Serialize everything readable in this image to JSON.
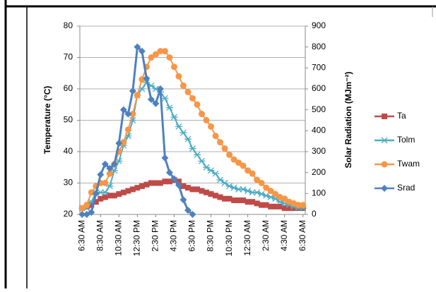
{
  "chart_data": {
    "type": "line",
    "y_label": "Temperature (°C)",
    "y2_label": "Solar Radiation (MJm⁻²)",
    "categories": [
      "6:30 AM",
      null,
      null,
      null,
      "8:30 AM",
      null,
      null,
      null,
      "10:30 AM",
      null,
      null,
      null,
      "12:30 PM",
      null,
      null,
      null,
      "2:30 PM",
      null,
      null,
      null,
      "4:30 PM",
      null,
      null,
      null,
      "6:30 PM",
      null,
      null,
      null,
      "8:30 PM",
      null,
      null,
      null,
      "10:30 PM",
      null,
      null,
      null,
      "12:30 AM",
      null,
      null,
      null,
      "2:30 AM",
      null,
      null,
      null,
      "4:30 AM",
      null,
      null,
      null,
      "6:30 AM"
    ],
    "ylim": [
      20,
      80
    ],
    "yticks": [
      20,
      30,
      40,
      50,
      60,
      70,
      80
    ],
    "y2lim": [
      0,
      900
    ],
    "y2ticks": [
      0,
      100,
      200,
      300,
      400,
      500,
      600,
      700,
      800,
      900
    ],
    "grid": true,
    "legend": "right",
    "series": [
      {
        "name": "Ta",
        "color": "#be4b48",
        "marker": "square",
        "values": [
          22,
          22.5,
          23,
          24,
          25,
          25.5,
          26,
          26,
          26.5,
          27,
          27.5,
          28,
          28.5,
          29,
          29.5,
          30,
          30,
          30,
          30.5,
          30.5,
          31,
          30.5,
          29,
          28.5,
          28,
          28,
          27.5,
          27,
          26.5,
          26,
          25.5,
          25,
          25,
          24.5,
          24.5,
          24.5,
          24,
          24,
          23.5,
          23,
          23,
          22.5,
          22.5,
          22.5,
          22,
          22,
          22,
          22,
          22
        ]
      },
      {
        "name": "Tolm",
        "color": "#4bacc6",
        "marker": "star",
        "values": [
          22,
          22,
          24,
          27,
          27,
          27,
          29,
          34,
          37,
          42,
          45,
          50,
          58,
          60,
          62,
          61,
          60,
          59,
          57,
          54,
          51,
          48,
          46,
          44,
          41,
          39,
          37,
          35,
          34,
          33,
          31,
          30,
          29,
          28.5,
          28,
          28,
          27.5,
          27,
          27,
          26.5,
          26,
          25.5,
          25,
          24,
          23.5,
          23,
          22.5,
          22,
          22
        ]
      },
      {
        "name": "Twam",
        "color": "#f79646",
        "marker": "circle",
        "values": [
          22,
          23,
          27,
          29,
          30,
          30,
          33,
          36,
          40,
          43,
          47,
          52,
          58,
          63,
          67,
          70,
          71,
          72,
          72,
          70,
          67,
          64,
          61,
          59,
          57,
          55,
          52,
          50,
          48,
          45,
          43,
          41,
          39,
          37.5,
          36.5,
          35.5,
          34,
          33,
          31,
          30,
          28.5,
          27.5,
          26.5,
          25.5,
          25,
          24,
          23.5,
          23,
          23
        ]
      },
      {
        "name": "Srad",
        "color": "#4f81bd",
        "marker": "diamond",
        "axis": "y2",
        "values": [
          0,
          0,
          10,
          100,
          190,
          240,
          220,
          240,
          340,
          500,
          480,
          590,
          800,
          780,
          650,
          550,
          530,
          600,
          270,
          200,
          170,
          140,
          70,
          20,
          0,
          null,
          null,
          null,
          null,
          null,
          null,
          null,
          null,
          null,
          null,
          null,
          null,
          null,
          null,
          null,
          null,
          null,
          null,
          null,
          null,
          null,
          null,
          null,
          null
        ]
      }
    ]
  }
}
